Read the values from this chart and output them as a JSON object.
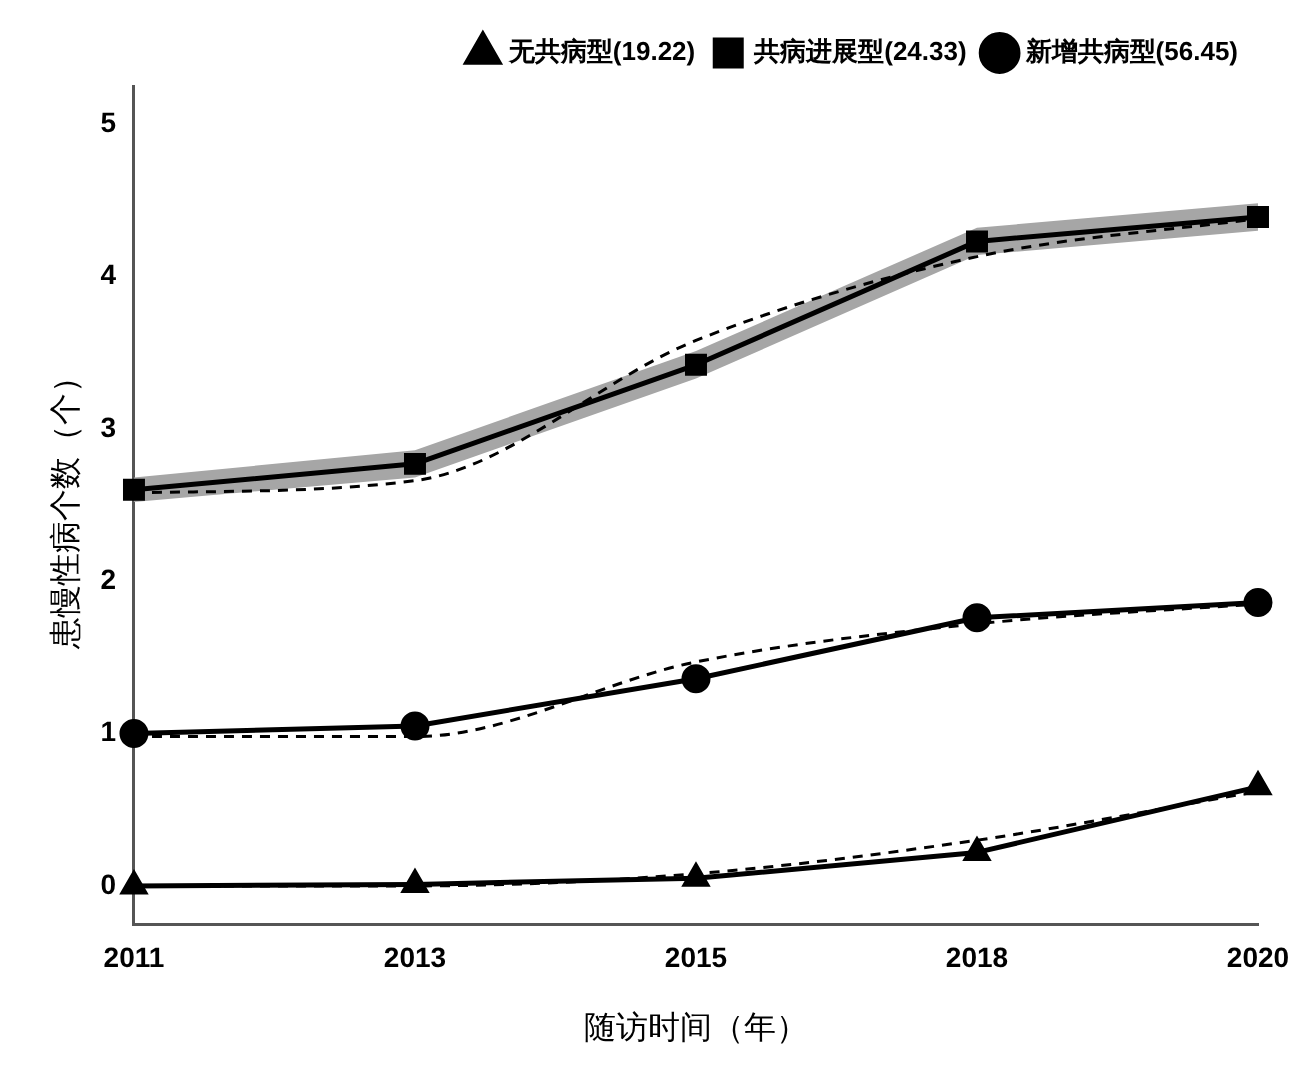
{
  "chart_data": {
    "type": "line",
    "xlabel": "随访时间（年）",
    "ylabel": "患慢性病个数（个）",
    "categories": [
      "2011",
      "2013",
      "2015",
      "2018",
      "2020"
    ],
    "ylim": [
      -0.25,
      5.25
    ],
    "yticks": [
      0,
      1,
      2,
      3,
      4,
      5
    ],
    "grid": false,
    "legend": "top right",
    "line_style": "solid",
    "series": [
      {
        "name": "无共病型(19.22)",
        "color": "#000000",
        "marker": "triangle",
        "values": [
          0.0,
          0.01,
          0.05,
          0.22,
          0.65
        ]
      },
      {
        "name": "共病进展型(24.33)",
        "color": "#000000",
        "marker": "square",
        "values": [
          2.6,
          2.77,
          3.42,
          4.23,
          4.39
        ],
        "lower": [
          2.52,
          2.68,
          3.33,
          4.14,
          4.3
        ],
        "upper": [
          2.68,
          2.86,
          3.51,
          4.32,
          4.48
        ]
      },
      {
        "name": "新增共病型(56.45)",
        "color": "#000000",
        "marker": "circle",
        "values": [
          1.0,
          1.05,
          1.36,
          1.76,
          1.86
        ]
      },
      {
        "type": "line",
        "color": "#000000",
        "marker": "none",
        "line_style": "dashed",
        "values": [
          0.0,
          0.0,
          0.08,
          0.3,
          0.62
        ]
      },
      {
        "type": "line",
        "color": "#000000",
        "marker": "none",
        "line_style": "dashed",
        "values": [
          2.58,
          2.66,
          3.58,
          4.13,
          4.38
        ]
      },
      {
        "type": "line",
        "color": "#000000",
        "marker": "none",
        "line_style": "dashed",
        "values": [
          0.98,
          0.98,
          1.47,
          1.72,
          1.85
        ]
      }
    ]
  }
}
